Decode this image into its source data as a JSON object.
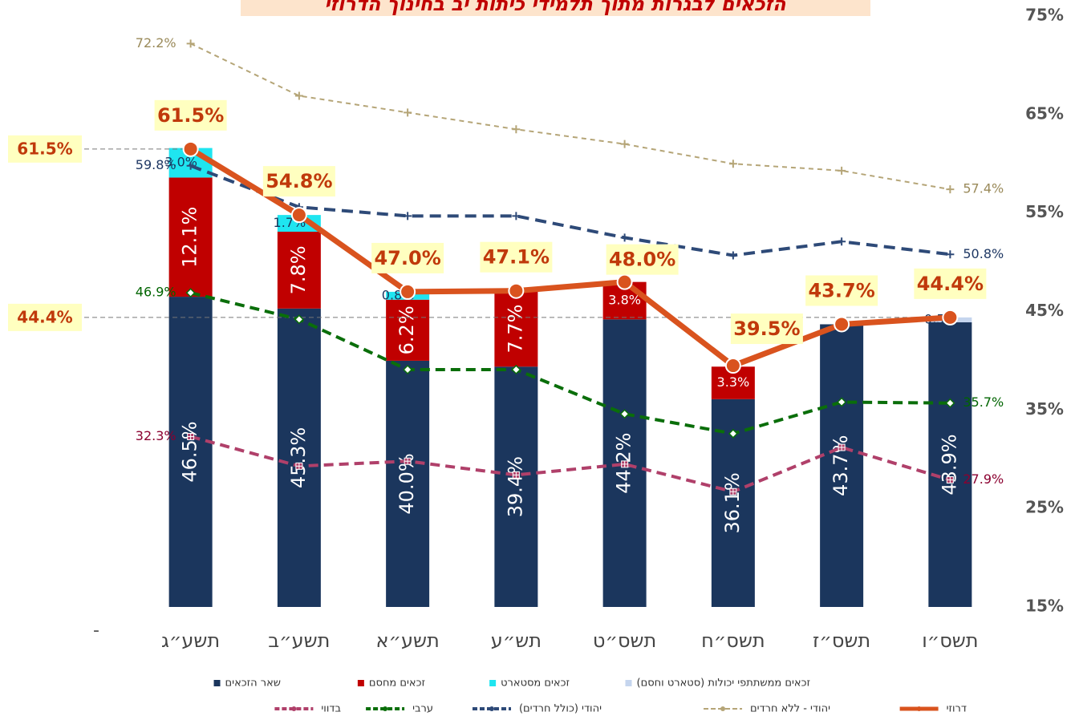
{
  "chart_data": {
    "type": "bar",
    "title": "הזכאים לבגרות מתוך תלמידי כיתות יב בחינוך הדרוזי",
    "left_tick": "-",
    "categories": [
      "תשע״ג",
      "תשע״ב",
      "תשע״א",
      "תש״ע",
      "תשס״ט",
      "תשס״ח",
      "תשס״ז",
      "תשס״ו"
    ],
    "ylim": [
      15,
      75
    ],
    "yticks": [
      {
        "value": 15,
        "label": "15%"
      },
      {
        "value": 25,
        "label": "25%"
      },
      {
        "value": 35,
        "label": "35%"
      },
      {
        "value": 45,
        "label": "45%"
      },
      {
        "value": 55,
        "label": "55%"
      },
      {
        "value": 65,
        "label": "65%"
      },
      {
        "value": 75,
        "label": "75%"
      }
    ],
    "y_axis_side": "right",
    "grid": false,
    "series": [
      {
        "name": "שאר הזכאים",
        "type": "bar",
        "color": "#1b365d",
        "values": [
          46.5,
          45.3,
          40.0,
          39.4,
          44.2,
          36.1,
          43.7,
          43.9
        ],
        "value_labels": [
          "46.5%",
          "45.3%",
          "40.0%",
          "39.4%",
          "44.2%",
          "36.1%",
          "43.7%",
          "43.9%"
        ]
      },
      {
        "name": "זכאים מחסם",
        "type": "bar",
        "color": "#c00000",
        "values": [
          12.1,
          7.8,
          6.2,
          7.7,
          3.8,
          3.3,
          null,
          null
        ],
        "value_labels": [
          "12.1%",
          "7.8%",
          "6.2%",
          "7.7%",
          "3.8%",
          "3.3%",
          null,
          null
        ]
      },
      {
        "name": "זכאים מסטארט",
        "type": "bar",
        "color": "#1fe5f0",
        "values": [
          3.0,
          1.7,
          0.8,
          null,
          null,
          null,
          null,
          null
        ],
        "value_labels": [
          "3.0%",
          "1.7%",
          "0.8%",
          null,
          null,
          null,
          null,
          null
        ]
      },
      {
        "name": "זכאים ממשתתפי יכולות (סטארט וחסם)",
        "type": "bar",
        "color": "#c5d5ee",
        "values": [
          null,
          null,
          null,
          null,
          null,
          null,
          null,
          0.5
        ],
        "value_labels": [
          null,
          null,
          null,
          null,
          null,
          null,
          null,
          "0.5%"
        ]
      },
      {
        "name": "דרוזי",
        "type": "line",
        "color": "#d9531e",
        "values": [
          61.5,
          54.8,
          47.0,
          47.1,
          48.0,
          39.5,
          43.7,
          44.4
        ],
        "value_labels": [
          "61.5%",
          "54.8%",
          "47.0%",
          "47.1%",
          "48.0%",
          "39.5%",
          "43.7%",
          "44.4%"
        ]
      },
      {
        "name": "יהודי - ללא חרדים",
        "type": "line",
        "color": "#b5a577",
        "values": [
          72.2,
          66.9,
          65.2,
          63.5,
          62.0,
          60.0,
          59.3,
          57.4
        ],
        "value_labels": [
          "72.2%",
          null,
          null,
          null,
          null,
          null,
          null,
          "57.4%"
        ]
      },
      {
        "name": "יהודי (כולל חרדים)",
        "type": "line",
        "color": "#2e4a78",
        "values": [
          59.8,
          55.6,
          54.7,
          54.7,
          52.5,
          50.7,
          52.1,
          50.8
        ],
        "value_labels": [
          "59.8%",
          null,
          null,
          null,
          null,
          null,
          null,
          "50.8%"
        ]
      },
      {
        "name": "ערבי",
        "type": "line",
        "color": "#0a6e0a",
        "values": [
          46.9,
          44.2,
          39.1,
          39.1,
          34.6,
          32.6,
          35.8,
          35.7
        ],
        "value_labels": [
          "46.9%",
          null,
          null,
          null,
          null,
          null,
          null,
          "35.7%"
        ]
      },
      {
        "name": "בדווי",
        "type": "line",
        "color": "#b0406a",
        "values": [
          32.3,
          29.3,
          29.8,
          28.4,
          29.5,
          26.7,
          31.2,
          27.9
        ],
        "value_labels": [
          "32.3%",
          null,
          null,
          null,
          null,
          null,
          null,
          "27.9%"
        ]
      }
    ]
  }
}
